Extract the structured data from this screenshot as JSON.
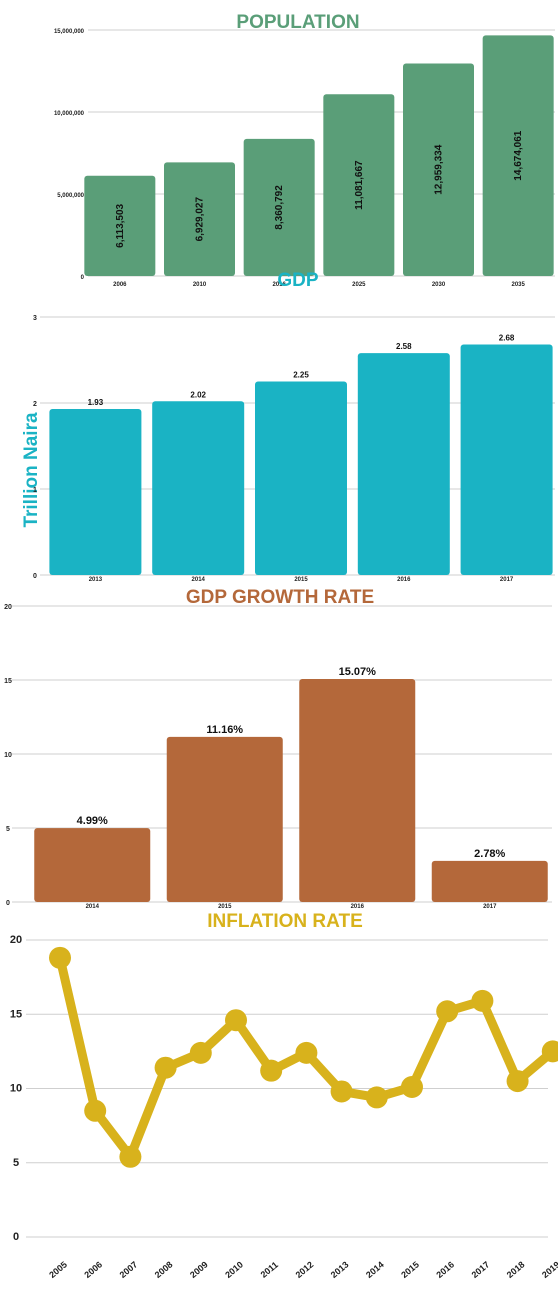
{
  "chart_data": [
    {
      "type": "bar",
      "title": "POPULATION",
      "color": "#5a9e78",
      "title_color": "#5a9e78",
      "categories": [
        "2006",
        "2010",
        "2016",
        "2025",
        "2030",
        "2035"
      ],
      "values": [
        6113503,
        6929027,
        8360792,
        11081667,
        12959334,
        14674061
      ],
      "value_labels": [
        "6,113,503",
        "6,929,027",
        "8,360,792",
        "11,081,667",
        "12,959,334",
        "14,674,061"
      ],
      "ylim": [
        0,
        15000000
      ],
      "yticks": [
        0,
        5000000,
        10000000,
        15000000
      ],
      "ytick_labels": [
        "0",
        "5,000,000",
        "10,000,000",
        "15,000,000"
      ],
      "grid": true
    },
    {
      "type": "bar",
      "title": "GDP",
      "ylabel": "Trillion Naira",
      "color": "#1ab3c4",
      "title_color": "#1ab3c4",
      "categories": [
        "2013",
        "2014",
        "2015",
        "2016",
        "2017"
      ],
      "values": [
        1.93,
        2.02,
        2.25,
        2.58,
        2.68
      ],
      "value_labels": [
        "1.93",
        "2.02",
        "2.25",
        "2.58",
        "2.68"
      ],
      "ylim": [
        0,
        3
      ],
      "yticks": [
        0,
        1,
        2,
        3
      ],
      "ytick_labels": [
        "0",
        "1",
        "2",
        "3"
      ],
      "grid": true
    },
    {
      "type": "bar",
      "title": "GDP GROWTH RATE",
      "color": "#b4683a",
      "title_color": "#b4683a",
      "categories": [
        "2014",
        "2015",
        "2016",
        "2017"
      ],
      "values": [
        4.99,
        11.16,
        15.07,
        2.78
      ],
      "value_labels": [
        "4.99%",
        "11.16%",
        "15.07%",
        "2.78%"
      ],
      "ylim": [
        0,
        20
      ],
      "yticks": [
        0,
        5,
        10,
        15,
        20
      ],
      "ytick_labels": [
        "0",
        "5",
        "10",
        "15",
        "20"
      ],
      "grid": true
    },
    {
      "type": "line",
      "title": "INFLATION RATE",
      "color": "#d8b21c",
      "title_color": "#d8b21c",
      "x": [
        "2005",
        "2006",
        "2007",
        "2008",
        "2009",
        "2010",
        "2011",
        "2012",
        "2013",
        "2014",
        "2015",
        "2016",
        "2017",
        "2018",
        "2019"
      ],
      "y": [
        18.8,
        8.5,
        5.4,
        11.4,
        12.4,
        14.6,
        11.2,
        12.4,
        9.8,
        9.4,
        10.1,
        15.2,
        15.9,
        10.5,
        12.5
      ],
      "ylim": [
        0,
        20
      ],
      "yticks": [
        0,
        5,
        10,
        15,
        20
      ],
      "ytick_labels": [
        "0",
        "5",
        "10",
        "15",
        "20"
      ],
      "grid": true
    }
  ]
}
